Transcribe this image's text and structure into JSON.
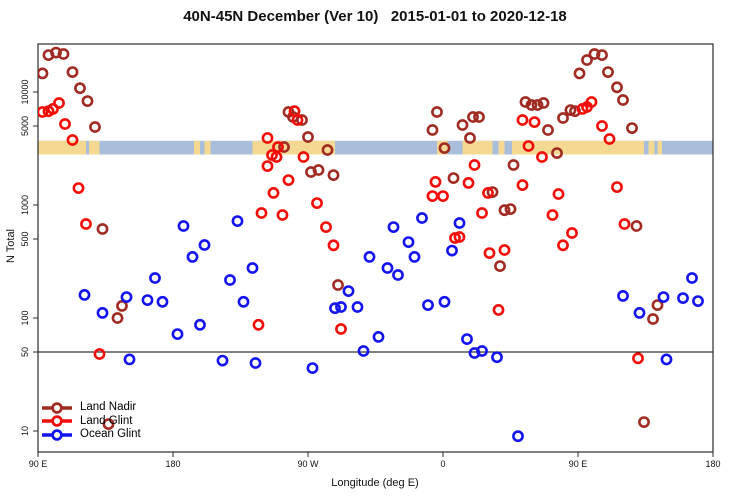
{
  "chart_data": {
    "type": "scatter",
    "title": "40N-45N December (Ver 10)   2015-01-01 to 2020-12-18",
    "xlabel": "Longitude (deg E)",
    "ylabel": "N Total",
    "x_axis": {
      "range_deg_extended": [
        90,
        540
      ],
      "ticks": [
        {
          "deg": 90,
          "label": "90 E"
        },
        {
          "deg": 180,
          "label": "180"
        },
        {
          "deg": 270,
          "label": "90 W"
        },
        {
          "deg": 360,
          "label": "0"
        },
        {
          "deg": 450,
          "label": "90 E"
        },
        {
          "deg": 540,
          "label": "180"
        }
      ]
    },
    "y_axis": {
      "scale": "log",
      "ticks": [
        10,
        50,
        100,
        500,
        1000,
        5000,
        10000
      ],
      "range": [
        7,
        27000
      ]
    },
    "reference_line": {
      "value": 50,
      "color": "#000000"
    },
    "map_band": {
      "description": "land/ocean coastline strip along longitude",
      "value_top": 3700,
      "value_bottom": 2800,
      "ocean_color": "#a9bedb",
      "land_color": "#f5d992",
      "land_segments_deg": [
        [
          90,
          122
        ],
        [
          124,
          131
        ],
        [
          194,
          198
        ],
        [
          201,
          205
        ],
        [
          233,
          288
        ],
        [
          356,
          363
        ],
        [
          373,
          393
        ],
        [
          397,
          401
        ],
        [
          406,
          494
        ],
        [
          497,
          501
        ],
        [
          503,
          506
        ]
      ]
    },
    "series": [
      {
        "name": "Land Nadir",
        "color": "#9f2b22",
        "points": [
          [
            97,
            21200
          ],
          [
            102,
            22300
          ],
          [
            107,
            21700
          ],
          [
            93,
            14600
          ],
          [
            113,
            15000
          ],
          [
            118,
            10800
          ],
          [
            123,
            8300
          ],
          [
            128,
            4900
          ],
          [
            133,
            613
          ],
          [
            257,
            6650
          ],
          [
            260,
            6010
          ],
          [
            266,
            5650
          ],
          [
            254,
            3260
          ],
          [
            270,
            4000
          ],
          [
            283,
            3070
          ],
          [
            272,
            1960
          ],
          [
            277,
            2040
          ],
          [
            287,
            1840
          ],
          [
            356,
            6650
          ],
          [
            353,
            4610
          ],
          [
            373,
            5100
          ],
          [
            380,
            6010
          ],
          [
            384,
            6010
          ],
          [
            378,
            3920
          ],
          [
            361,
            3190
          ],
          [
            367,
            1730
          ],
          [
            393,
            1300
          ],
          [
            456,
            19200
          ],
          [
            461,
            21700
          ],
          [
            466,
            21200
          ],
          [
            451,
            14600
          ],
          [
            470,
            15000
          ],
          [
            476,
            11000
          ],
          [
            480,
            8500
          ],
          [
            415,
            8160
          ],
          [
            419,
            7670
          ],
          [
            423,
            7670
          ],
          [
            427,
            8000
          ],
          [
            440,
            5890
          ],
          [
            445,
            6920
          ],
          [
            448,
            6760
          ],
          [
            486,
            4790
          ],
          [
            430,
            4610
          ],
          [
            407,
            2260
          ],
          [
            436,
            2880
          ],
          [
            401,
            900
          ],
          [
            405,
            920
          ],
          [
            489,
            652
          ],
          [
            146,
            128
          ],
          [
            143,
            100
          ],
          [
            137,
            11.5
          ],
          [
            290,
            196
          ],
          [
            398,
            288
          ],
          [
            503,
            130
          ],
          [
            500,
            98
          ],
          [
            494,
            12
          ]
        ]
      },
      {
        "name": "Land Glint",
        "color": "#f30d08",
        "points": [
          [
            93,
            6650
          ],
          [
            97,
            6760
          ],
          [
            100,
            7080
          ],
          [
            104,
            8000
          ],
          [
            108,
            5210
          ],
          [
            113,
            3760
          ],
          [
            117,
            1410
          ],
          [
            122,
            679
          ],
          [
            261,
            6760
          ],
          [
            263,
            5650
          ],
          [
            243,
            3920
          ],
          [
            250,
            3260
          ],
          [
            246,
            2770
          ],
          [
            249,
            2660
          ],
          [
            243,
            2210
          ],
          [
            267,
            2660
          ],
          [
            257,
            1660
          ],
          [
            247,
            1280
          ],
          [
            253,
            816
          ],
          [
            239,
            850
          ],
          [
            276,
            1040
          ],
          [
            282,
            638
          ],
          [
            287,
            440
          ],
          [
            355,
            1600
          ],
          [
            353,
            1200
          ],
          [
            360,
            1200
          ],
          [
            377,
            1570
          ],
          [
            381,
            2260
          ],
          [
            368,
            510
          ],
          [
            371,
            521
          ],
          [
            390,
            1280
          ],
          [
            386,
            850
          ],
          [
            413,
            5650
          ],
          [
            421,
            5420
          ],
          [
            453,
            7080
          ],
          [
            456,
            7360
          ],
          [
            459,
            8160
          ],
          [
            466,
            5000
          ],
          [
            471,
            3840
          ],
          [
            417,
            3330
          ],
          [
            426,
            2660
          ],
          [
            433,
            816
          ],
          [
            413,
            1500
          ],
          [
            437,
            1250
          ],
          [
            446,
            565
          ],
          [
            476,
            1440
          ],
          [
            481,
            679
          ],
          [
            440,
            440
          ],
          [
            401,
            400
          ],
          [
            131,
            48
          ],
          [
            237,
            87
          ],
          [
            292,
            80
          ],
          [
            391,
            375
          ],
          [
            397,
            118
          ],
          [
            490,
            44
          ]
        ]
      },
      {
        "name": "Ocean Glint",
        "color": "#1414f0",
        "points": [
          [
            121,
            160
          ],
          [
            133,
            111
          ],
          [
            149,
            153
          ],
          [
            163,
            144
          ],
          [
            173,
            139
          ],
          [
            168,
            226
          ],
          [
            193,
            347
          ],
          [
            201,
            443
          ],
          [
            187,
            652
          ],
          [
            223,
            721
          ],
          [
            183,
            72
          ],
          [
            198,
            87
          ],
          [
            218,
            217
          ],
          [
            227,
            139
          ],
          [
            233,
            277
          ],
          [
            151,
            43
          ],
          [
            213,
            42
          ],
          [
            235,
            40
          ],
          [
            311,
            347
          ],
          [
            323,
            277
          ],
          [
            330,
            240
          ],
          [
            341,
            347
          ],
          [
            337,
            470
          ],
          [
            366,
            395
          ],
          [
            297,
            173
          ],
          [
            288,
            122
          ],
          [
            292,
            125
          ],
          [
            303,
            125
          ],
          [
            350,
            130
          ],
          [
            361,
            139
          ],
          [
            317,
            68
          ],
          [
            307,
            51
          ],
          [
            376,
            65
          ],
          [
            381,
            49
          ],
          [
            386,
            51
          ],
          [
            273,
            36
          ],
          [
            327,
            638
          ],
          [
            346,
            767
          ],
          [
            371,
            693
          ],
          [
            526,
            226
          ],
          [
            507,
            153
          ],
          [
            520,
            150
          ],
          [
            530,
            141
          ],
          [
            480,
            157
          ],
          [
            491,
            111
          ],
          [
            396,
            45
          ],
          [
            509,
            43
          ],
          [
            410,
            9
          ]
        ]
      }
    ],
    "legend": {
      "position": "bottom-left",
      "items": [
        "Land Nadir",
        "Land Glint",
        "Ocean Glint"
      ]
    }
  }
}
